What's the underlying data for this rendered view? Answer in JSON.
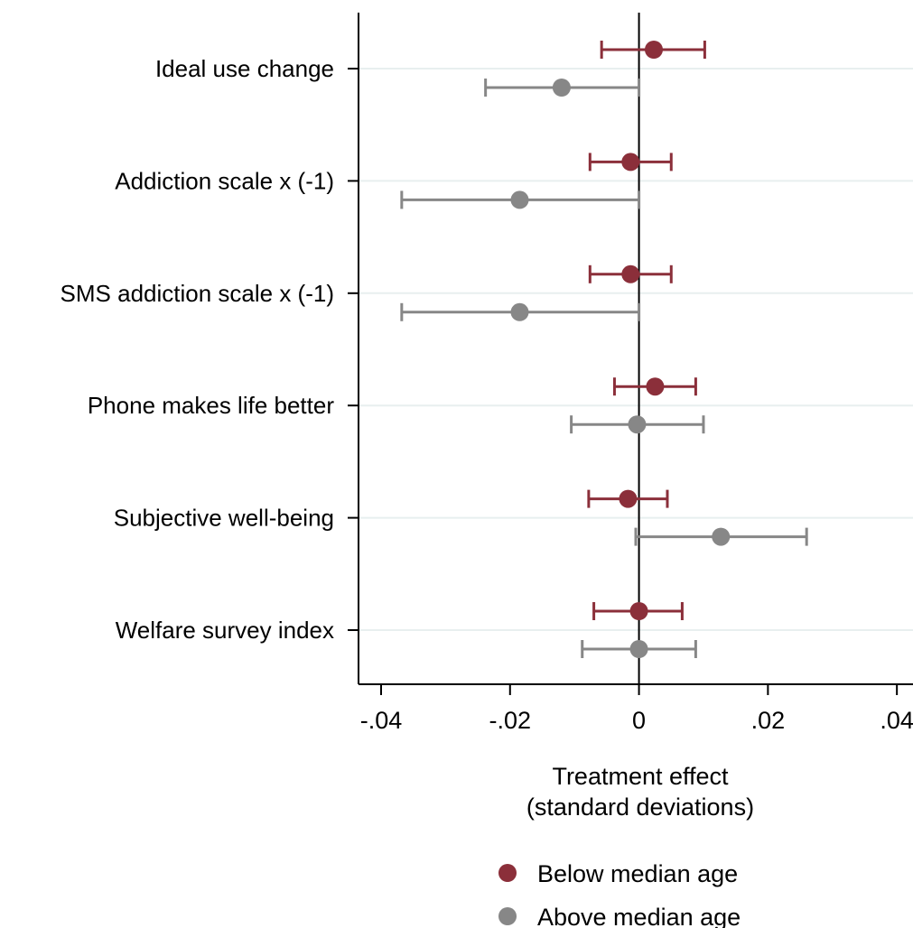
{
  "chart_data": {
    "type": "scatter",
    "title": "",
    "xlabel_lines": [
      "Treatment effect",
      "(standard deviations)"
    ],
    "ylabel": "",
    "xlim": [
      -0.0435,
      0.0425
    ],
    "x_ticks": [
      -0.04,
      -0.02,
      0,
      0.02,
      0.04
    ],
    "x_tick_labels": [
      "-.04",
      "-.02",
      "0",
      ".02",
      ".04"
    ],
    "categories": [
      "Ideal use change",
      "Addiction scale x (-1)",
      "SMS addiction scale x (-1)",
      "Phone makes life better",
      "Subjective well-being",
      "Welfare survey index"
    ],
    "grid": true,
    "legend_position": "bottom",
    "series": [
      {
        "name": "Below median age",
        "color": "#8b2f3a",
        "points": [
          {
            "estimate": 0.0023,
            "ci_low": -0.0058,
            "ci_high": 0.0102
          },
          {
            "estimate": -0.0013,
            "ci_low": -0.0076,
            "ci_high": 0.005
          },
          {
            "estimate": -0.0013,
            "ci_low": -0.0076,
            "ci_high": 0.005
          },
          {
            "estimate": 0.0025,
            "ci_low": -0.0038,
            "ci_high": 0.0088
          },
          {
            "estimate": -0.0017,
            "ci_low": -0.0078,
            "ci_high": 0.0044
          },
          {
            "estimate": 0.0,
            "ci_low": -0.007,
            "ci_high": 0.0067
          }
        ]
      },
      {
        "name": "Above median age",
        "color": "#878787",
        "points": [
          {
            "estimate": -0.012,
            "ci_low": -0.0238,
            "ci_high": 0.0
          },
          {
            "estimate": -0.0185,
            "ci_low": -0.0368,
            "ci_high": 0.0
          },
          {
            "estimate": -0.0185,
            "ci_low": -0.0368,
            "ci_high": 0.0
          },
          {
            "estimate": -0.0003,
            "ci_low": -0.0105,
            "ci_high": 0.01
          },
          {
            "estimate": 0.0127,
            "ci_low": -0.0005,
            "ci_high": 0.026
          },
          {
            "estimate": 0.0,
            "ci_low": -0.0088,
            "ci_high": 0.0088
          }
        ]
      }
    ]
  }
}
